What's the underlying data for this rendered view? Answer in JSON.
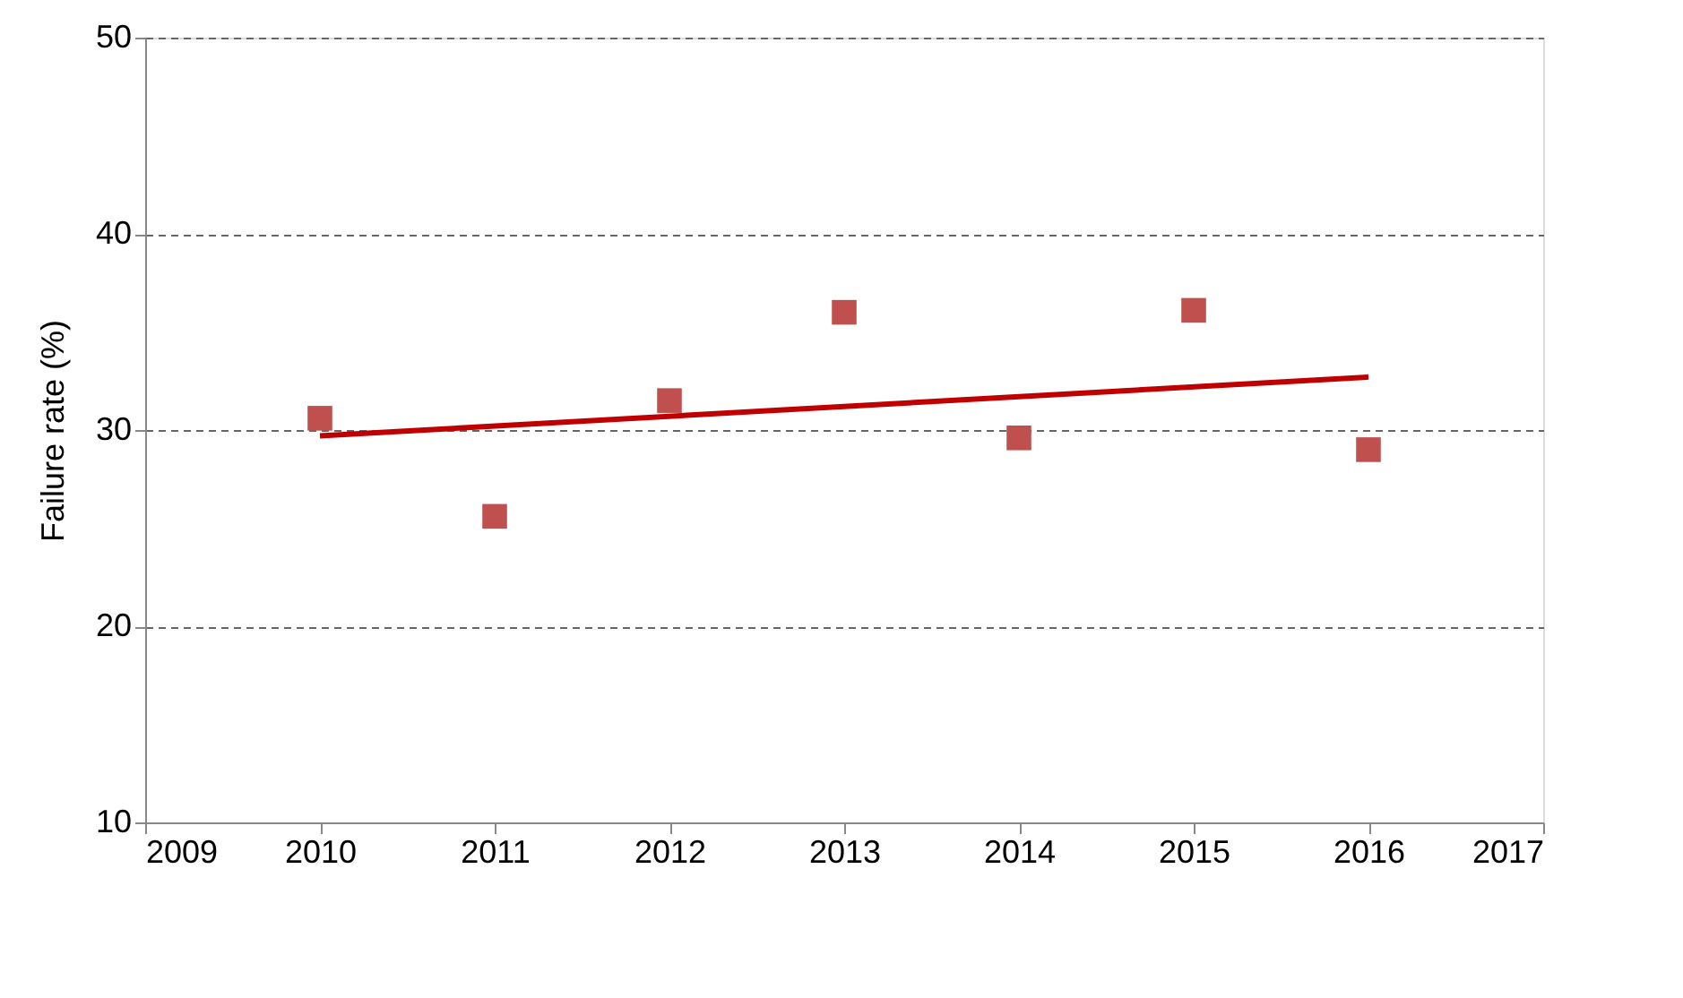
{
  "chart_data": {
    "type": "scatter",
    "ylabel": "Failure rate (%)",
    "x": [
      2010,
      2011,
      2012,
      2013,
      2014,
      2015,
      2016
    ],
    "series": [
      {
        "color": "#c0504d",
        "marker": "square",
        "values": [
          30.6,
          25.6,
          31.5,
          36.0,
          29.6,
          36.1,
          29.0
        ]
      },
      {
        "type": "line",
        "color": "#c00000",
        "line_style": "solid",
        "marker": "none",
        "x": [
          2010,
          2016
        ],
        "values": [
          29.7,
          32.7
        ]
      }
    ],
    "xlim": [
      2009,
      2017
    ],
    "xticks": [
      2009,
      2010,
      2011,
      2012,
      2013,
      2014,
      2015,
      2016,
      2017
    ],
    "ylim": [
      10,
      50
    ],
    "yticks": [
      10,
      20,
      30,
      40,
      50
    ],
    "grid": "y"
  }
}
